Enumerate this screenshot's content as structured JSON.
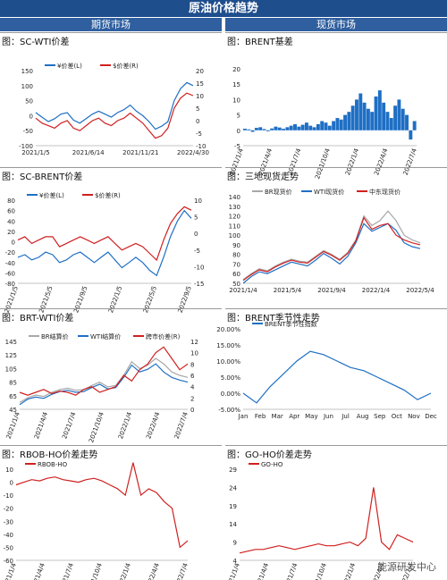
{
  "header": {
    "title": "原油价格趋势",
    "left_col": "期货市场",
    "right_col": "现货市场"
  },
  "watermark": "能源研发中心",
  "colors": {
    "blue": "#1f6fc4",
    "red": "#d02020",
    "gray": "#a8a8a8"
  },
  "chart_data": [
    {
      "id": "sc_wti",
      "title": "图：SC-WTI价差",
      "type": "line",
      "x_ticks": [
        "2021/1/5",
        "2021/6/14",
        "2021/11/21",
        "2022/4/30"
      ],
      "yleft": {
        "min": -100,
        "max": 150,
        "ticks": [
          -100,
          -50,
          0,
          50,
          100,
          150
        ]
      },
      "yright": {
        "min": -10,
        "max": 20,
        "ticks": [
          -10,
          -5,
          0,
          5,
          10,
          15,
          20
        ]
      },
      "series": [
        {
          "name": "¥价差(L)",
          "axis": "left",
          "color": "#1f6fc4",
          "values": [
            10,
            -5,
            -20,
            -10,
            5,
            10,
            -15,
            -25,
            -10,
            5,
            15,
            5,
            -5,
            10,
            20,
            35,
            15,
            0,
            -20,
            -45,
            -35,
            -20,
            50,
            90,
            110,
            100
          ]
        },
        {
          "name": "$价差(R)",
          "axis": "right",
          "color": "#d02020",
          "values": [
            1,
            -1,
            -2,
            -3,
            -1,
            0,
            -3,
            -4,
            -2,
            0,
            1,
            -1,
            -2,
            0,
            1,
            3,
            1,
            -1,
            -4,
            -7,
            -6,
            -3,
            5,
            9,
            11,
            10
          ]
        }
      ]
    },
    {
      "id": "brent_basis",
      "title": "图：BRENT基差",
      "type": "bar",
      "x_ticks": [
        "2021/1/4",
        "2021/4/4",
        "2021/7/4",
        "2021/10/4",
        "2022/1/4",
        "2022/4/4",
        "2022/7/4"
      ],
      "ylim": [
        -5,
        20
      ],
      "y_ticks": [
        -5,
        0,
        5,
        10,
        15,
        20
      ],
      "values": [
        0.5,
        0.3,
        -0.5,
        0.8,
        1,
        0.4,
        -0.3,
        0.6,
        1.2,
        0.9,
        0.5,
        1,
        1.5,
        2,
        1.2,
        1.8,
        2.5,
        1.5,
        1,
        2,
        3,
        2.5,
        1.5,
        3,
        4,
        3.5,
        5,
        6,
        8,
        10,
        12,
        9,
        7,
        6,
        11,
        13,
        9,
        6,
        4,
        8,
        10,
        7,
        5,
        -3,
        3
      ]
    },
    {
      "id": "sc_brent",
      "title": "图：SC-BRENT价差",
      "type": "line",
      "x_ticks": [
        "2021/1/5",
        "2021/5/5",
        "2021/9/5",
        "2022/1/5",
        "2022/5/5",
        "2022/9/5"
      ],
      "yleft": {
        "min": -80,
        "max": 80,
        "ticks": [
          -80,
          -60,
          -40,
          -20,
          0,
          20,
          40,
          60,
          80
        ]
      },
      "yright": {
        "min": -15,
        "max": 10,
        "ticks": [
          -15,
          -10,
          -5,
          0,
          5,
          10
        ]
      },
      "series": [
        {
          "name": "¥价差(L)",
          "axis": "left",
          "color": "#1f6fc4",
          "values": [
            -30,
            -25,
            -35,
            -30,
            -20,
            -25,
            -40,
            -35,
            -25,
            -20,
            -30,
            -40,
            -30,
            -20,
            -35,
            -50,
            -40,
            -30,
            -40,
            -55,
            -65,
            -30,
            10,
            40,
            60,
            45
          ]
        },
        {
          "name": "$价差(R)",
          "axis": "right",
          "color": "#d02020",
          "values": [
            -2,
            -1,
            -3,
            -2,
            -1,
            -1,
            -4,
            -3,
            -2,
            -1,
            -2,
            -3,
            -2,
            -1,
            -3,
            -5,
            -4,
            -3,
            -4,
            -6,
            -8,
            -2,
            3,
            6,
            8,
            7
          ]
        }
      ]
    },
    {
      "id": "three_spot",
      "title": "图：三地现货走势",
      "type": "line",
      "x_ticks": [
        "2021/1/4",
        "2021/5/4",
        "2021/9/4",
        "2022/1/4",
        "2022/5/4"
      ],
      "ylim": [
        50,
        140
      ],
      "y_ticks": [
        50,
        60,
        70,
        80,
        90,
        100,
        110,
        120,
        130,
        140
      ],
      "series": [
        {
          "name": "BR现货价",
          "color": "#a8a8a8",
          "values": [
            54,
            60,
            65,
            63,
            68,
            72,
            75,
            73,
            72,
            78,
            84,
            80,
            75,
            82,
            95,
            120,
            110,
            115,
            125,
            115,
            100,
            95,
            92
          ]
        },
        {
          "name": "WTI现货价",
          "color": "#1f6fc4",
          "values": [
            50,
            57,
            62,
            60,
            64,
            68,
            72,
            70,
            68,
            74,
            81,
            76,
            70,
            78,
            92,
            112,
            104,
            108,
            112,
            105,
            92,
            88,
            86
          ]
        },
        {
          "name": "中东现货价",
          "color": "#d02020",
          "values": [
            53,
            59,
            64,
            62,
            67,
            71,
            74,
            72,
            71,
            77,
            83,
            79,
            74,
            81,
            94,
            118,
            106,
            110,
            112,
            100,
            95,
            92,
            90
          ]
        }
      ]
    },
    {
      "id": "brt_wti",
      "title": "图：BRT-WTI价差",
      "type": "line",
      "x_ticks": [
        "2021/1/4",
        "2021/4/4",
        "2021/7/4",
        "2021/10/4",
        "2022/1/4",
        "2022/4/4",
        "2022/7/4"
      ],
      "yleft": {
        "min": 45,
        "max": 145,
        "ticks": [
          45,
          65,
          85,
          105,
          125,
          145
        ]
      },
      "yright": {
        "min": 0,
        "max": 12,
        "ticks": [
          0,
          2,
          4,
          6,
          8,
          10,
          12
        ]
      },
      "series": [
        {
          "name": "BR结算价",
          "axis": "left",
          "color": "#a8a8a8",
          "values": [
            55,
            62,
            66,
            64,
            70,
            74,
            76,
            73,
            74,
            80,
            85,
            78,
            80,
            95,
            115,
            105,
            110,
            120,
            112,
            100,
            95,
            92
          ]
        },
        {
          "name": "WTI结算价",
          "axis": "left",
          "color": "#1f6fc4",
          "values": [
            52,
            60,
            63,
            61,
            67,
            71,
            73,
            70,
            71,
            77,
            82,
            75,
            77,
            92,
            110,
            100,
            104,
            112,
            100,
            92,
            88,
            85
          ]
        },
        {
          "name": "跨市价差(R)",
          "axis": "right",
          "color": "#d02020",
          "values": [
            3,
            2.5,
            3,
            3.5,
            2.8,
            3.2,
            3,
            2.5,
            3.5,
            4,
            3,
            3.5,
            4,
            6,
            5,
            7,
            8,
            10,
            11,
            9,
            7,
            8
          ]
        }
      ]
    },
    {
      "id": "brent_seasonal",
      "title": "图：BRENT季节性走势",
      "type": "line",
      "x_ticks": [
        "Jan",
        "Feb",
        "Mar",
        "Apr",
        "May",
        "Jun",
        "Jul",
        "Aug",
        "Sep",
        "Oct",
        "Nov",
        "Dec"
      ],
      "ylim": [
        -5,
        20
      ],
      "y_ticks": [
        "-5.00%",
        "0.00%",
        "5.00%",
        "10.00%",
        "15.00%",
        "20.00%"
      ],
      "series": [
        {
          "name": "BRENT季节性指数",
          "color": "#1f6fc4",
          "values": [
            0,
            -3,
            2,
            6,
            10,
            13,
            12,
            10,
            8,
            7,
            5,
            3,
            1,
            -2,
            0
          ]
        }
      ]
    },
    {
      "id": "rbob_ho",
      "title": "图：RBOB-HO价差走势",
      "type": "line",
      "x_ticks": [
        "2021/1/4",
        "2021/4/4",
        "2021/7/4",
        "2021/10/4",
        "2022/1/4",
        "2022/4/4",
        "2022/7/4"
      ],
      "ylim": [
        -60,
        10
      ],
      "y_ticks": [
        -60,
        -50,
        -40,
        -30,
        -20,
        -10,
        0,
        10
      ],
      "series": [
        {
          "name": "RBOB-HO",
          "color": "#d02020",
          "values": [
            -2,
            0,
            2,
            1,
            3,
            4,
            2,
            1,
            0,
            2,
            3,
            1,
            -2,
            -5,
            -10,
            15,
            -10,
            -5,
            -8,
            -15,
            -20,
            -50,
            -45
          ]
        }
      ]
    },
    {
      "id": "go_ho",
      "title": "图：GO-HO价差走势",
      "type": "line",
      "x_ticks": [
        "2021/1/4",
        "2021/4/4",
        "2021/7/4",
        "2021/10/4",
        "2022/1/4",
        "2022/4/4",
        "2022/7/4"
      ],
      "ylim": [
        4,
        29
      ],
      "y_ticks": [
        4,
        9,
        14,
        19,
        24,
        29
      ],
      "series": [
        {
          "name": "GO-HO",
          "color": "#d02020",
          "values": [
            6,
            6.5,
            7,
            7,
            7.5,
            8,
            7.5,
            7,
            7.5,
            8,
            8.5,
            8,
            8,
            8.5,
            9,
            8,
            10,
            24,
            9,
            7,
            11,
            10,
            9
          ]
        }
      ]
    }
  ]
}
